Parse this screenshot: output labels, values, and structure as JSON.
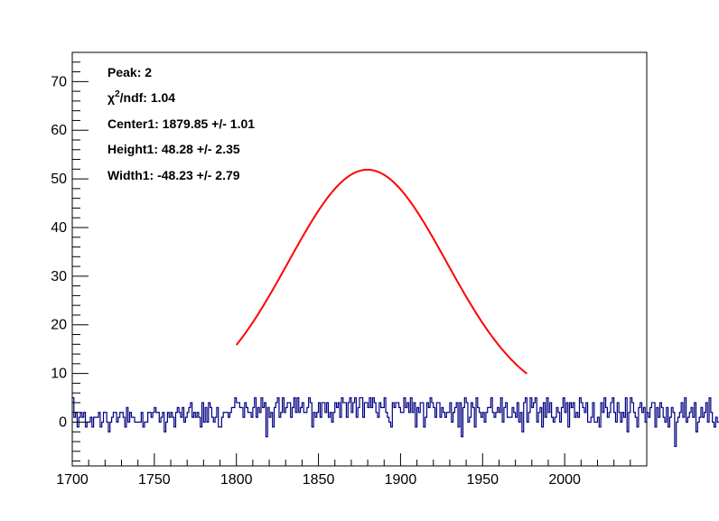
{
  "chart_data": {
    "type": "line",
    "title": "",
    "xlabel": "",
    "ylabel": "",
    "xlim": [
      1700,
      2050
    ],
    "ylim": [
      -9,
      76
    ],
    "x_ticks": [
      1700,
      1750,
      1800,
      1850,
      1900,
      1950,
      2000
    ],
    "x_tick_labels": [
      "1700",
      "1750",
      "1800",
      "1850",
      "1900",
      "1950",
      "2000"
    ],
    "y_ticks": [
      0,
      10,
      20,
      30,
      40,
      50,
      60,
      70
    ],
    "y_tick_labels": [
      "0",
      "10",
      "20",
      "30",
      "40",
      "50",
      "60",
      "70"
    ],
    "grid": false,
    "annotations": {
      "peak": "Peak: 2",
      "chi_symbol": "χ",
      "chi_sup": "2",
      "chi_rest": "/ndf: 1.04",
      "center": "Center1: 1879.85 +/- 1.01",
      "height": "Height1: 48.28 +/- 2.35",
      "width": "Width1: -48.23 +/- 2.79"
    },
    "series": [
      {
        "kind": "histogram",
        "color": "#000080",
        "bin_width": 1,
        "x_start": 1700,
        "values": [
          5,
          1,
          2,
          -1,
          1,
          2,
          1,
          2,
          -1,
          0,
          0,
          1,
          -1,
          1,
          1,
          1,
          2,
          -1,
          0,
          2,
          2,
          0,
          -2,
          0,
          1,
          2,
          2,
          0,
          1,
          2,
          2,
          1,
          -1,
          3,
          0,
          2,
          1,
          1,
          0,
          0,
          0,
          0,
          2,
          -1,
          0,
          0,
          2,
          2,
          1,
          2,
          3,
          2,
          2,
          0,
          1,
          2,
          -2,
          0,
          2,
          1,
          2,
          1,
          -1,
          2,
          3,
          2,
          1,
          3,
          0,
          1,
          2,
          3,
          4,
          1,
          2,
          1,
          2,
          1,
          -1,
          4,
          0,
          3,
          0,
          4,
          3,
          1,
          0,
          1,
          3,
          -1,
          -1,
          1,
          2,
          2,
          2,
          1,
          2,
          3,
          3,
          5,
          4,
          4,
          3,
          3,
          1,
          4,
          3,
          2,
          2,
          1,
          3,
          5,
          1,
          3,
          2,
          5,
          3,
          4,
          -3,
          3,
          1,
          2,
          -1,
          3,
          4,
          5,
          1,
          2,
          5,
          2,
          3,
          4,
          4,
          1,
          3,
          5,
          2,
          5,
          2,
          3,
          4,
          2,
          2,
          3,
          5,
          4,
          -1,
          2,
          1,
          2,
          4,
          1,
          4,
          4,
          2,
          4,
          1,
          2,
          0,
          2,
          4,
          3,
          4,
          1,
          5,
          4,
          4,
          1,
          4,
          5,
          2,
          4,
          5,
          1,
          3,
          5,
          5,
          1,
          4,
          4,
          3,
          5,
          3,
          5,
          4,
          2,
          1,
          4,
          3,
          3,
          5,
          2,
          1,
          0,
          -1,
          4,
          3,
          4,
          4,
          3,
          2,
          2,
          5,
          3,
          4,
          2,
          5,
          2,
          4,
          -1,
          3,
          2,
          4,
          4,
          -1,
          1,
          4,
          3,
          5,
          4,
          3,
          1,
          4,
          4,
          1,
          3,
          2,
          1,
          2,
          2,
          4,
          0,
          2,
          3,
          4,
          -1,
          4,
          -3,
          3,
          5,
          4,
          0,
          1,
          4,
          3,
          -1,
          5,
          3,
          2,
          1,
          2,
          0,
          2,
          3,
          3,
          5,
          2,
          1,
          2,
          3,
          2,
          5,
          0,
          3,
          4,
          1,
          1,
          1,
          3,
          2,
          1,
          4,
          0,
          2,
          -2,
          4,
          5,
          0,
          2,
          5,
          3,
          4,
          5,
          0,
          2,
          3,
          -1,
          4,
          1,
          5,
          2,
          4,
          1,
          0,
          1,
          3,
          2,
          0,
          3,
          5,
          2,
          4,
          -1,
          4,
          3,
          4,
          1,
          2,
          1,
          5,
          4,
          3,
          2,
          4,
          0,
          0,
          1,
          4,
          0,
          0,
          1,
          -1,
          4,
          2,
          5,
          3,
          1,
          2,
          4,
          5,
          2,
          0,
          4,
          2,
          0,
          2,
          1,
          5,
          -2,
          2,
          5,
          4,
          2,
          1,
          -1,
          3,
          4,
          2,
          3,
          0,
          2,
          1,
          3,
          4,
          4,
          -1,
          3,
          1,
          4,
          3,
          1,
          0,
          3,
          -1,
          1,
          3,
          2,
          -5,
          0,
          1,
          2,
          4,
          1,
          5,
          0,
          1,
          2,
          3,
          1,
          4,
          -2,
          0,
          1,
          3,
          1,
          2,
          4,
          0,
          5,
          2,
          0,
          -1,
          1,
          0
        ]
      },
      {
        "kind": "fit",
        "color": "#ff0000",
        "x_from": 1800,
        "x_to": 1977,
        "center": 1879.85,
        "height": 48.28,
        "width": -48.23,
        "baseline": 3.6
      }
    ]
  }
}
